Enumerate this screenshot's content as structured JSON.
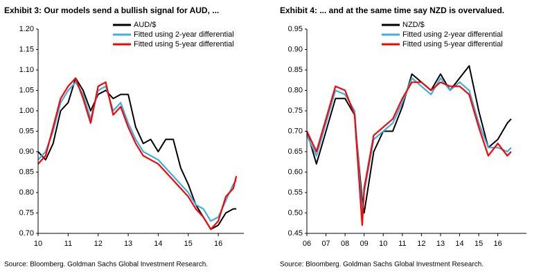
{
  "chart_data": [
    {
      "type": "line",
      "title": "Exhibit 3: Our models send a bullish signal for AUD, ...",
      "source": "Source: Bloomberg. Goldman Sachs Global Investment Research.",
      "x": [
        10,
        10.25,
        10.5,
        10.75,
        11,
        11.25,
        11.5,
        11.75,
        12,
        12.25,
        12.5,
        12.75,
        13,
        13.25,
        13.5,
        13.75,
        14,
        14.25,
        14.5,
        14.75,
        15,
        15.25,
        15.5,
        15.75,
        16,
        16.25,
        16.5,
        16.6
      ],
      "series": [
        {
          "name": "AUD/$",
          "color": "#000000",
          "values": [
            0.9,
            0.88,
            0.92,
            1.0,
            1.02,
            1.08,
            1.05,
            1.0,
            1.04,
            1.05,
            1.03,
            1.04,
            1.04,
            0.96,
            0.92,
            0.93,
            0.9,
            0.93,
            0.93,
            0.86,
            0.82,
            0.77,
            0.74,
            0.71,
            0.72,
            0.75,
            0.76,
            0.76
          ]
        },
        {
          "name": "Fitted using 2-year differential",
          "color": "#3ab0e2",
          "values": [
            0.88,
            0.9,
            0.95,
            1.02,
            1.05,
            1.07,
            1.04,
            0.98,
            1.05,
            1.06,
            1.0,
            1.02,
            0.97,
            0.93,
            0.9,
            0.89,
            0.88,
            0.86,
            0.84,
            0.82,
            0.8,
            0.77,
            0.76,
            0.73,
            0.74,
            0.78,
            0.82,
            0.83
          ]
        },
        {
          "name": "Fitted using 5-year differential",
          "color": "#ff0000",
          "values": [
            0.87,
            0.89,
            0.96,
            1.03,
            1.06,
            1.08,
            1.03,
            0.97,
            1.06,
            1.07,
            0.99,
            1.01,
            0.96,
            0.92,
            0.89,
            0.88,
            0.87,
            0.85,
            0.83,
            0.81,
            0.79,
            0.76,
            0.74,
            0.71,
            0.73,
            0.79,
            0.81,
            0.84
          ]
        }
      ],
      "xlim": [
        10,
        16.85
      ],
      "xticks": [
        10,
        11,
        12,
        13,
        14,
        15,
        16
      ],
      "ylim": [
        0.7,
        1.2
      ],
      "yticks": [
        {
          "value": 0.7,
          "label": "0.70"
        },
        {
          "value": 0.75,
          "label": "0.75"
        },
        {
          "value": 0.8,
          "label": "0.80"
        },
        {
          "value": 0.85,
          "label": "0.85"
        },
        {
          "value": 0.9,
          "label": "0.90"
        },
        {
          "value": 0.95,
          "label": "0.95"
        },
        {
          "value": 1.0,
          "label": "1.00"
        },
        {
          "value": 1.05,
          "label": "1.05"
        },
        {
          "value": 1.1,
          "label": "1.10"
        },
        {
          "value": 1.15,
          "label": "1.15"
        },
        {
          "value": 1.2,
          "label": "1.20"
        }
      ],
      "grid": false
    },
    {
      "type": "line",
      "title": "Exhibit 4: ... and at the same time say NZD is overvalued.",
      "source": "Source: Bloomberg. Goldman Sachs Global Investment Research.",
      "x": [
        6,
        6.5,
        7,
        7.5,
        8,
        8.5,
        8.9,
        9,
        9.5,
        10,
        10.5,
        11,
        11.5,
        12,
        12.5,
        13,
        13.5,
        14,
        14.5,
        15,
        15.5,
        16,
        16.5,
        16.7
      ],
      "series": [
        {
          "name": "NZD/$",
          "color": "#000000",
          "values": [
            0.7,
            0.62,
            0.7,
            0.78,
            0.78,
            0.74,
            0.53,
            0.5,
            0.65,
            0.7,
            0.7,
            0.76,
            0.84,
            0.82,
            0.8,
            0.84,
            0.8,
            0.83,
            0.86,
            0.75,
            0.66,
            0.68,
            0.72,
            0.73
          ]
        },
        {
          "name": "Fitted using 2-year differential",
          "color": "#3ab0e2",
          "values": [
            0.69,
            0.64,
            0.72,
            0.8,
            0.79,
            0.75,
            0.5,
            0.55,
            0.68,
            0.7,
            0.72,
            0.77,
            0.83,
            0.81,
            0.79,
            0.83,
            0.8,
            0.82,
            0.8,
            0.72,
            0.66,
            0.66,
            0.65,
            0.66
          ]
        },
        {
          "name": "Fitted using 5-year differential",
          "color": "#ff0000",
          "values": [
            0.7,
            0.65,
            0.73,
            0.81,
            0.8,
            0.74,
            0.47,
            0.56,
            0.69,
            0.71,
            0.73,
            0.78,
            0.82,
            0.82,
            0.8,
            0.82,
            0.81,
            0.81,
            0.79,
            0.71,
            0.64,
            0.67,
            0.64,
            0.65
          ]
        }
      ],
      "xlim": [
        6,
        17.5
      ],
      "xticks": [
        {
          "value": 6,
          "label": "06"
        },
        {
          "value": 7,
          "label": "07"
        },
        {
          "value": 8,
          "label": "08"
        },
        {
          "value": 9,
          "label": "09"
        },
        10,
        11,
        12,
        13,
        14,
        15,
        16
      ],
      "ylim": [
        0.45,
        0.95
      ],
      "yticks": [
        {
          "value": 0.45,
          "label": "0.45"
        },
        {
          "value": 0.5,
          "label": "0.50"
        },
        {
          "value": 0.55,
          "label": "0.55"
        },
        {
          "value": 0.6,
          "label": "0.60"
        },
        {
          "value": 0.65,
          "label": "0.65"
        },
        {
          "value": 0.7,
          "label": "0.70"
        },
        {
          "value": 0.75,
          "label": "0.75"
        },
        {
          "value": 0.8,
          "label": "0.80"
        },
        {
          "value": 0.85,
          "label": "0.85"
        },
        {
          "value": 0.9,
          "label": "0.90"
        },
        {
          "value": 0.95,
          "label": "0.95"
        }
      ],
      "grid": false
    }
  ]
}
